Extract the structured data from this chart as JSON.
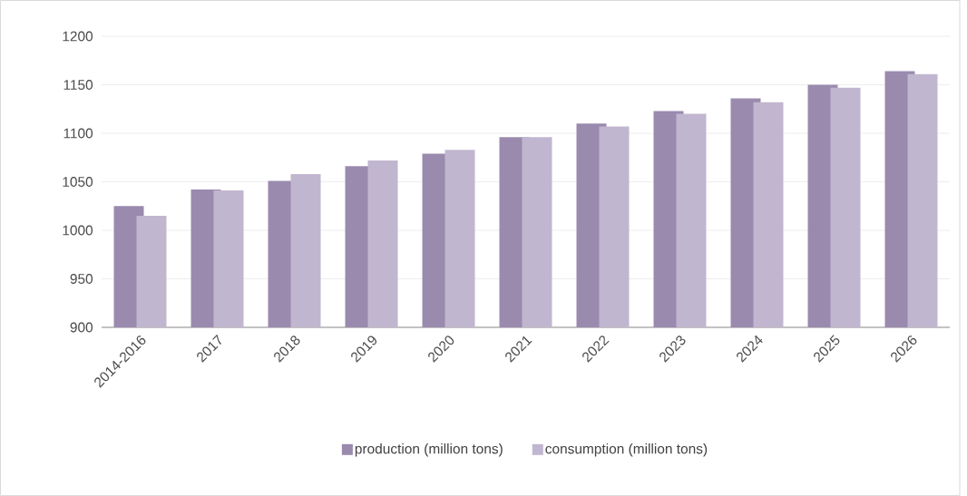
{
  "chart_data": {
    "type": "bar",
    "categories": [
      "2014-2016",
      "2017",
      "2018",
      "2019",
      "2020",
      "2021",
      "2022",
      "2023",
      "2024",
      "2025",
      "2026"
    ],
    "series": [
      {
        "name": "production (million tons)",
        "color": "#9a8aae",
        "values": [
          1025,
          1042,
          1051,
          1066,
          1079,
          1096,
          1110,
          1123,
          1136,
          1150,
          1164
        ]
      },
      {
        "name": "consumption (million tons)",
        "color": "#c1b6cf",
        "values": [
          1015,
          1041,
          1058,
          1072,
          1083,
          1096,
          1107,
          1120,
          1132,
          1147,
          1161
        ]
      }
    ],
    "ylim": [
      900,
      1200
    ],
    "yticks": [
      900,
      950,
      1000,
      1050,
      1100,
      1150,
      1200
    ],
    "grid": "y",
    "legend": "bottom"
  }
}
